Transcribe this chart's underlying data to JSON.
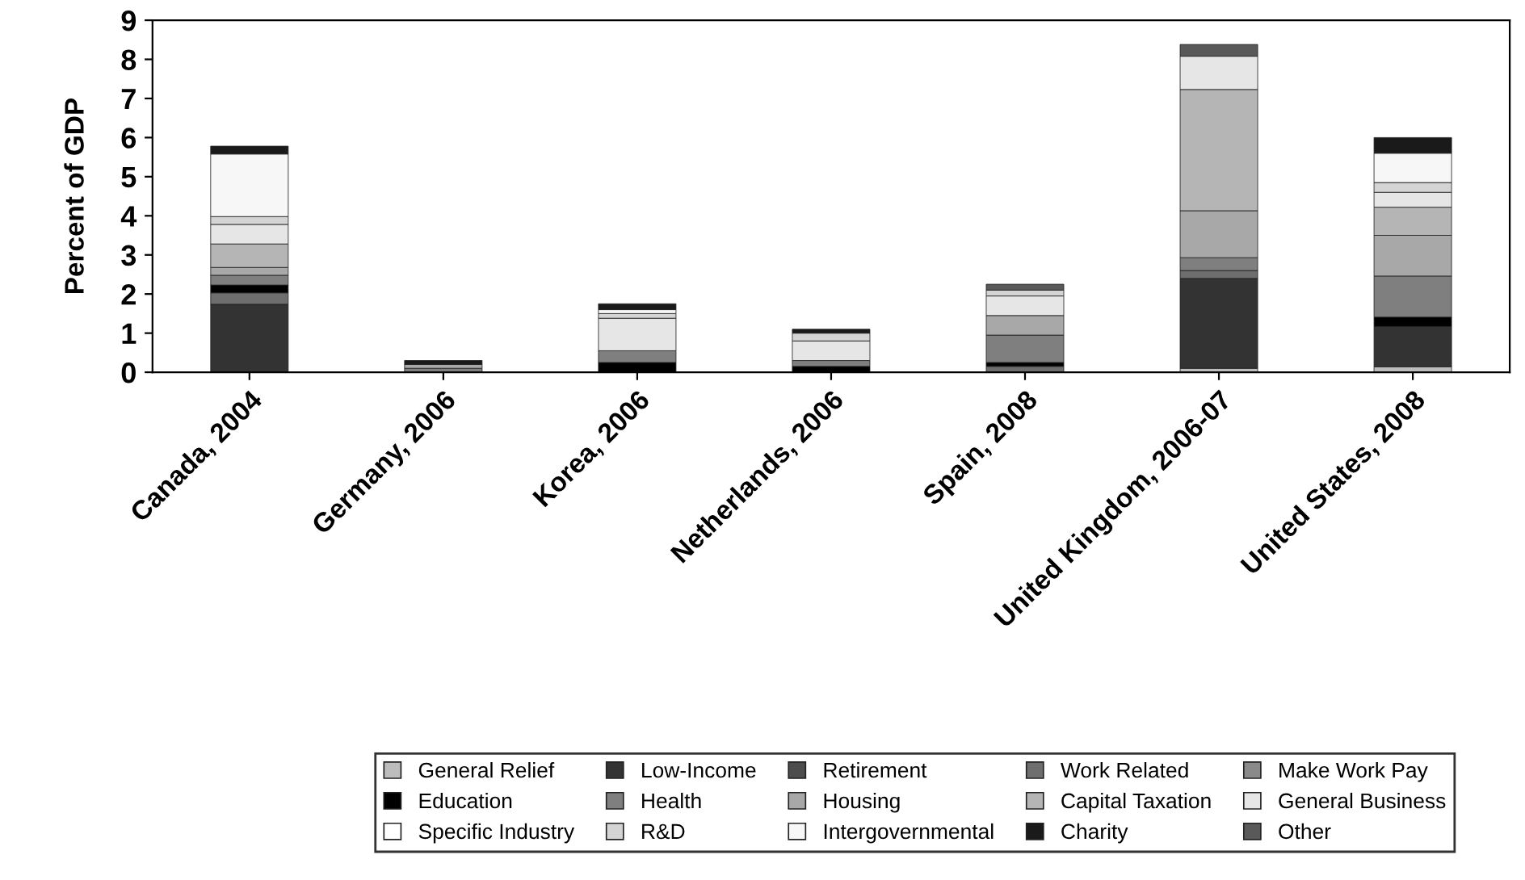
{
  "chart_data": {
    "type": "bar",
    "stacked": true,
    "ylabel": "Percent of GDP",
    "categories": [
      "Canada, 2004",
      "Germany, 2006",
      "Korea, 2006",
      "Netherlands, 2006",
      "Spain, 2008",
      "United Kingdom, 2006-07",
      "United States, 2008"
    ],
    "ylim": [
      0,
      9
    ],
    "yticks": [
      0,
      1,
      2,
      3,
      4,
      5,
      6,
      7,
      8,
      9
    ],
    "grid": false,
    "legend": "bottom",
    "series": [
      {
        "name": "General Relief",
        "color": "#bdbdbd",
        "values": [
          null,
          null,
          null,
          null,
          null,
          0.1,
          0.14
        ]
      },
      {
        "name": "Low-Income",
        "color": "#333333",
        "values": [
          1.74,
          null,
          null,
          null,
          null,
          2.3,
          1.03
        ]
      },
      {
        "name": "Retirement",
        "color": "#4d4d4d",
        "values": [
          null,
          null,
          null,
          null,
          null,
          null,
          null
        ]
      },
      {
        "name": "Work Related",
        "color": "#6e6e6e",
        "values": [
          0.29,
          null,
          null,
          null,
          0.15,
          0.2,
          null
        ]
      },
      {
        "name": "Make Work Pay",
        "color": "#8a8a8a",
        "values": [
          null,
          null,
          null,
          null,
          null,
          null,
          null
        ]
      },
      {
        "name": "Education",
        "color": "#000000",
        "values": [
          0.2,
          null,
          0.25,
          0.15,
          0.1,
          null,
          0.24
        ]
      },
      {
        "name": "Health",
        "color": "#7f7f7f",
        "values": [
          0.25,
          0.1,
          0.3,
          0.15,
          0.7,
          0.33,
          1.05
        ]
      },
      {
        "name": "Housing",
        "color": "#a8a8a8",
        "values": [
          0.2,
          0.1,
          null,
          null,
          0.5,
          1.2,
          1.04
        ]
      },
      {
        "name": "Capital Taxation",
        "color": "#b5b5b5",
        "values": [
          0.6,
          null,
          null,
          null,
          null,
          3.1,
          0.72
        ]
      },
      {
        "name": "General Business",
        "color": "#e6e6e6",
        "values": [
          0.5,
          null,
          0.83,
          0.5,
          0.5,
          0.85,
          0.38
        ]
      },
      {
        "name": "Specific Industry",
        "color": "#ffffff",
        "values": [
          null,
          null,
          null,
          null,
          null,
          null,
          null
        ]
      },
      {
        "name": "R&D",
        "color": "#d4d4d4",
        "values": [
          0.2,
          null,
          0.12,
          0.2,
          0.15,
          null,
          0.25
        ]
      },
      {
        "name": "Intergovernmental",
        "color": "#f7f7f7",
        "values": [
          1.6,
          null,
          0.1,
          null,
          null,
          null,
          0.75
        ]
      },
      {
        "name": "Charity",
        "color": "#1a1a1a",
        "values": [
          0.2,
          0.1,
          0.15,
          0.1,
          null,
          null,
          0.4
        ]
      },
      {
        "name": "Other",
        "color": "#595959",
        "values": [
          null,
          null,
          null,
          null,
          0.15,
          0.3,
          null
        ]
      }
    ]
  }
}
